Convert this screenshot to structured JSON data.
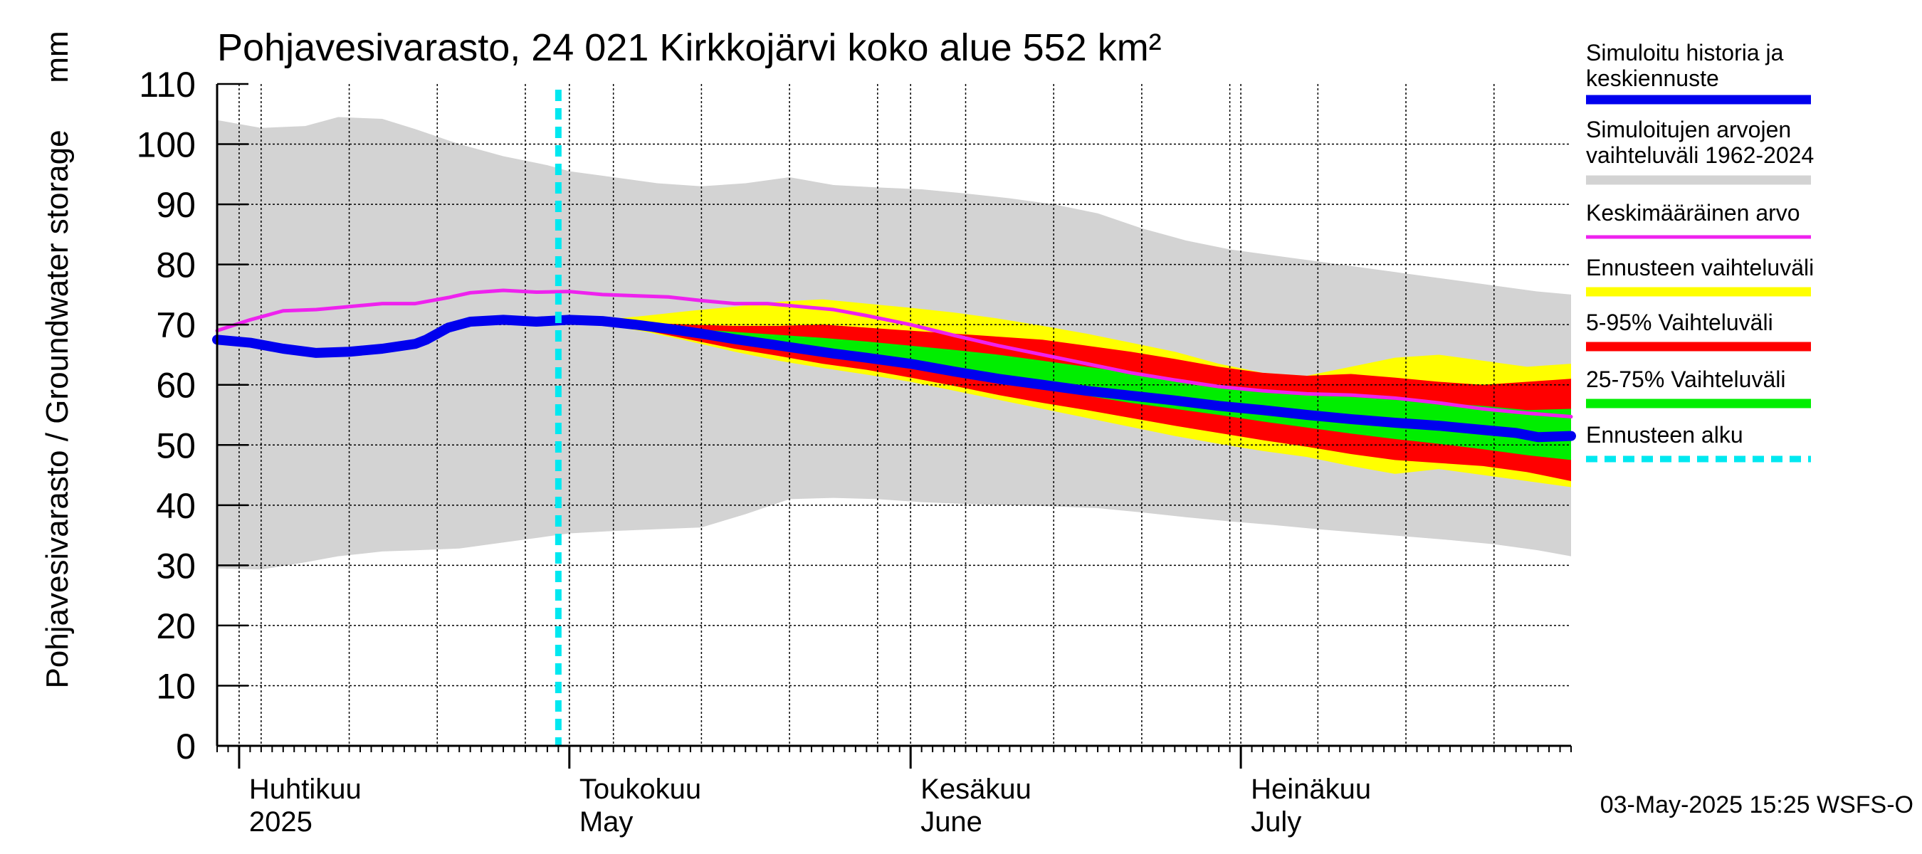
{
  "chart_data": {
    "type": "area",
    "title": "Pohjavesivarasto, 24 021 Kirkkojärvi koko alue 552 km²",
    "ylabel": "Pohjavesivarasto / Groundwater storage",
    "yunit": "mm",
    "ylim": [
      0,
      110
    ],
    "yticks": [
      0,
      10,
      20,
      30,
      40,
      50,
      60,
      70,
      80,
      90,
      100,
      110
    ],
    "xlim": [
      "2025-03-30",
      "2025-07-31"
    ],
    "grid": true,
    "legend_position": "right",
    "month_labels": [
      {
        "line1": "Huhtikuu",
        "line2": "2025",
        "date": "2025-04-01"
      },
      {
        "line1": "Toukokuu",
        "line2": "May",
        "date": "2025-05-01"
      },
      {
        "line1": "Kesäkuu",
        "line2": "June",
        "date": "2025-06-01"
      },
      {
        "line1": "Heinäkuu",
        "line2": "July",
        "date": "2025-07-01"
      }
    ],
    "forecast_start": "2025-04-30",
    "footer": "03-May-2025 15:25 WSFS-O",
    "series": [
      {
        "name": "Simuloitujen arvojen vaihteluväli 1962-2024",
        "kind": "band",
        "color": "#d3d3d3",
        "x": [
          "2025-03-30",
          "2025-04-03",
          "2025-04-07",
          "2025-04-10",
          "2025-04-14",
          "2025-04-17",
          "2025-04-21",
          "2025-04-25",
          "2025-04-29",
          "2025-05-01",
          "2025-05-05",
          "2025-05-09",
          "2025-05-13",
          "2025-05-17",
          "2025-05-21",
          "2025-05-25",
          "2025-05-29",
          "2025-06-02",
          "2025-06-06",
          "2025-06-10",
          "2025-06-14",
          "2025-06-18",
          "2025-06-22",
          "2025-06-26",
          "2025-06-30",
          "2025-07-04",
          "2025-07-08",
          "2025-07-12",
          "2025-07-16",
          "2025-07-20",
          "2025-07-24",
          "2025-07-28",
          "2025-07-31"
        ],
        "low": [
          29.5,
          29.3,
          30.5,
          31.5,
          32.3,
          32.5,
          32.8,
          33.8,
          34.8,
          35.3,
          35.7,
          36.0,
          36.3,
          38.5,
          41.0,
          41.2,
          41.0,
          40.5,
          40.2,
          40.0,
          39.8,
          39.5,
          38.8,
          38.0,
          37.3,
          36.7,
          36.0,
          35.4,
          34.8,
          34.2,
          33.5,
          32.5,
          31.5
        ],
        "high": [
          104.0,
          102.7,
          103.0,
          104.5,
          104.2,
          102.5,
          100.0,
          98.0,
          96.5,
          95.5,
          94.5,
          93.5,
          93.0,
          93.5,
          94.5,
          93.2,
          92.8,
          92.5,
          91.8,
          91.0,
          90.0,
          88.5,
          86.0,
          84.0,
          82.5,
          81.5,
          80.5,
          79.5,
          78.5,
          77.5,
          76.5,
          75.5,
          75.0
        ]
      },
      {
        "name": "Ennusteen vaihteluväli",
        "kind": "band",
        "color": "#ffff00",
        "x": [
          "2025-04-30",
          "2025-05-04",
          "2025-05-08",
          "2025-05-12",
          "2025-05-16",
          "2025-05-20",
          "2025-05-24",
          "2025-05-28",
          "2025-06-01",
          "2025-06-05",
          "2025-06-09",
          "2025-06-13",
          "2025-06-17",
          "2025-06-21",
          "2025-06-25",
          "2025-06-29",
          "2025-07-03",
          "2025-07-07",
          "2025-07-11",
          "2025-07-15",
          "2025-07-19",
          "2025-07-23",
          "2025-07-27",
          "2025-07-31"
        ],
        "low": [
          70.5,
          70.0,
          68.8,
          67.2,
          65.5,
          64.0,
          62.8,
          61.7,
          60.5,
          59.0,
          57.5,
          56.0,
          54.5,
          53.0,
          51.5,
          50.2,
          49.0,
          48.0,
          46.5,
          45.2,
          46.0,
          45.0,
          44.0,
          43.0
        ],
        "high": [
          70.5,
          70.8,
          71.5,
          72.3,
          73.0,
          73.8,
          74.2,
          73.5,
          72.8,
          72.0,
          71.0,
          69.8,
          68.5,
          67.0,
          65.5,
          63.5,
          62.0,
          61.5,
          63.0,
          64.5,
          65.0,
          64.0,
          63.0,
          63.5
        ]
      },
      {
        "name": "5-95% Vaihteluväli",
        "kind": "band",
        "color": "#ff0000",
        "x": [
          "2025-04-30",
          "2025-05-04",
          "2025-05-08",
          "2025-05-12",
          "2025-05-16",
          "2025-05-20",
          "2025-05-24",
          "2025-05-28",
          "2025-06-01",
          "2025-06-05",
          "2025-06-09",
          "2025-06-13",
          "2025-06-17",
          "2025-06-21",
          "2025-06-25",
          "2025-06-29",
          "2025-07-03",
          "2025-07-07",
          "2025-07-11",
          "2025-07-15",
          "2025-07-19",
          "2025-07-23",
          "2025-07-27",
          "2025-07-31"
        ],
        "low": [
          70.5,
          70.0,
          69.0,
          67.5,
          66.0,
          64.8,
          63.5,
          62.5,
          61.2,
          59.8,
          58.3,
          57.0,
          55.8,
          54.5,
          53.2,
          52.0,
          50.8,
          49.7,
          48.5,
          47.5,
          47.0,
          46.5,
          45.5,
          44.0
        ],
        "high": [
          70.5,
          70.2,
          70.3,
          70.0,
          69.8,
          69.8,
          70.0,
          69.5,
          69.0,
          68.5,
          68.0,
          67.5,
          66.5,
          65.5,
          64.3,
          63.0,
          62.0,
          61.5,
          61.8,
          61.2,
          60.5,
          60.0,
          60.5,
          61.0
        ]
      },
      {
        "name": "25-75% Vaihteluväli",
        "kind": "band",
        "color": "#00ee00",
        "x": [
          "2025-04-30",
          "2025-05-04",
          "2025-05-08",
          "2025-05-12",
          "2025-05-16",
          "2025-05-20",
          "2025-05-24",
          "2025-05-28",
          "2025-06-01",
          "2025-06-05",
          "2025-06-09",
          "2025-06-13",
          "2025-06-17",
          "2025-06-21",
          "2025-06-25",
          "2025-06-29",
          "2025-07-03",
          "2025-07-07",
          "2025-07-11",
          "2025-07-15",
          "2025-07-19",
          "2025-07-23",
          "2025-07-27",
          "2025-07-31"
        ],
        "low": [
          70.5,
          70.0,
          69.2,
          68.2,
          67.0,
          66.0,
          65.0,
          64.0,
          63.0,
          61.8,
          60.5,
          59.3,
          58.2,
          57.0,
          56.0,
          55.0,
          53.9,
          52.9,
          51.9,
          51.0,
          50.2,
          49.3,
          48.3,
          47.5
        ],
        "high": [
          70.5,
          70.3,
          69.8,
          69.3,
          68.8,
          68.3,
          67.8,
          67.2,
          66.5,
          65.8,
          65.0,
          64.0,
          63.0,
          62.0,
          61.0,
          60.0,
          59.2,
          58.5,
          58.0,
          57.5,
          57.0,
          56.5,
          55.8,
          56.0
        ]
      },
      {
        "name": "Keskimääräinen arvo",
        "kind": "line",
        "color": "#ee22ee",
        "x": [
          "2025-03-30",
          "2025-04-02",
          "2025-04-05",
          "2025-04-08",
          "2025-04-11",
          "2025-04-14",
          "2025-04-17",
          "2025-04-20",
          "2025-04-22",
          "2025-04-25",
          "2025-04-28",
          "2025-05-01",
          "2025-05-04",
          "2025-05-07",
          "2025-05-10",
          "2025-05-13",
          "2025-05-16",
          "2025-05-19",
          "2025-05-22",
          "2025-05-25",
          "2025-05-28",
          "2025-06-01",
          "2025-06-05",
          "2025-06-09",
          "2025-06-13",
          "2025-06-17",
          "2025-06-21",
          "2025-06-25",
          "2025-06-29",
          "2025-07-03",
          "2025-07-07",
          "2025-07-11",
          "2025-07-15",
          "2025-07-19",
          "2025-07-23",
          "2025-07-27",
          "2025-07-31"
        ],
        "y": [
          69.0,
          70.8,
          72.3,
          72.5,
          73.0,
          73.5,
          73.5,
          74.5,
          75.3,
          75.7,
          75.4,
          75.5,
          75.0,
          74.8,
          74.6,
          74.0,
          73.5,
          73.5,
          73.0,
          72.5,
          71.5,
          70.0,
          68.2,
          66.5,
          65.0,
          63.5,
          62.0,
          60.8,
          59.7,
          59.0,
          58.5,
          58.3,
          57.8,
          57.0,
          56.0,
          55.3,
          54.7
        ]
      },
      {
        "name": "Simuloitu historia ja keskiennuste",
        "kind": "line",
        "color": "#0000ee",
        "x": [
          "2025-03-30",
          "2025-04-02",
          "2025-04-05",
          "2025-04-08",
          "2025-04-11",
          "2025-04-14",
          "2025-04-17",
          "2025-04-18",
          "2025-04-20",
          "2025-04-22",
          "2025-04-25",
          "2025-04-28",
          "2025-05-01",
          "2025-05-04",
          "2025-05-07",
          "2025-05-10",
          "2025-05-13",
          "2025-05-16",
          "2025-05-19",
          "2025-05-22",
          "2025-05-25",
          "2025-05-28",
          "2025-06-01",
          "2025-06-05",
          "2025-06-09",
          "2025-06-13",
          "2025-06-17",
          "2025-06-21",
          "2025-06-25",
          "2025-06-29",
          "2025-07-03",
          "2025-07-07",
          "2025-07-11",
          "2025-07-15",
          "2025-07-19",
          "2025-07-23",
          "2025-07-26",
          "2025-07-28",
          "2025-07-31"
        ],
        "y": [
          67.5,
          67.0,
          66.0,
          65.3,
          65.5,
          66.0,
          66.8,
          67.5,
          69.5,
          70.5,
          70.8,
          70.5,
          70.8,
          70.6,
          70.0,
          69.3,
          68.5,
          67.6,
          66.8,
          66.0,
          65.2,
          64.5,
          63.5,
          62.2,
          61.0,
          60.0,
          59.0,
          58.2,
          57.4,
          56.5,
          55.8,
          55.0,
          54.3,
          53.7,
          53.2,
          52.5,
          52.0,
          51.3,
          51.5
        ]
      }
    ]
  }
}
